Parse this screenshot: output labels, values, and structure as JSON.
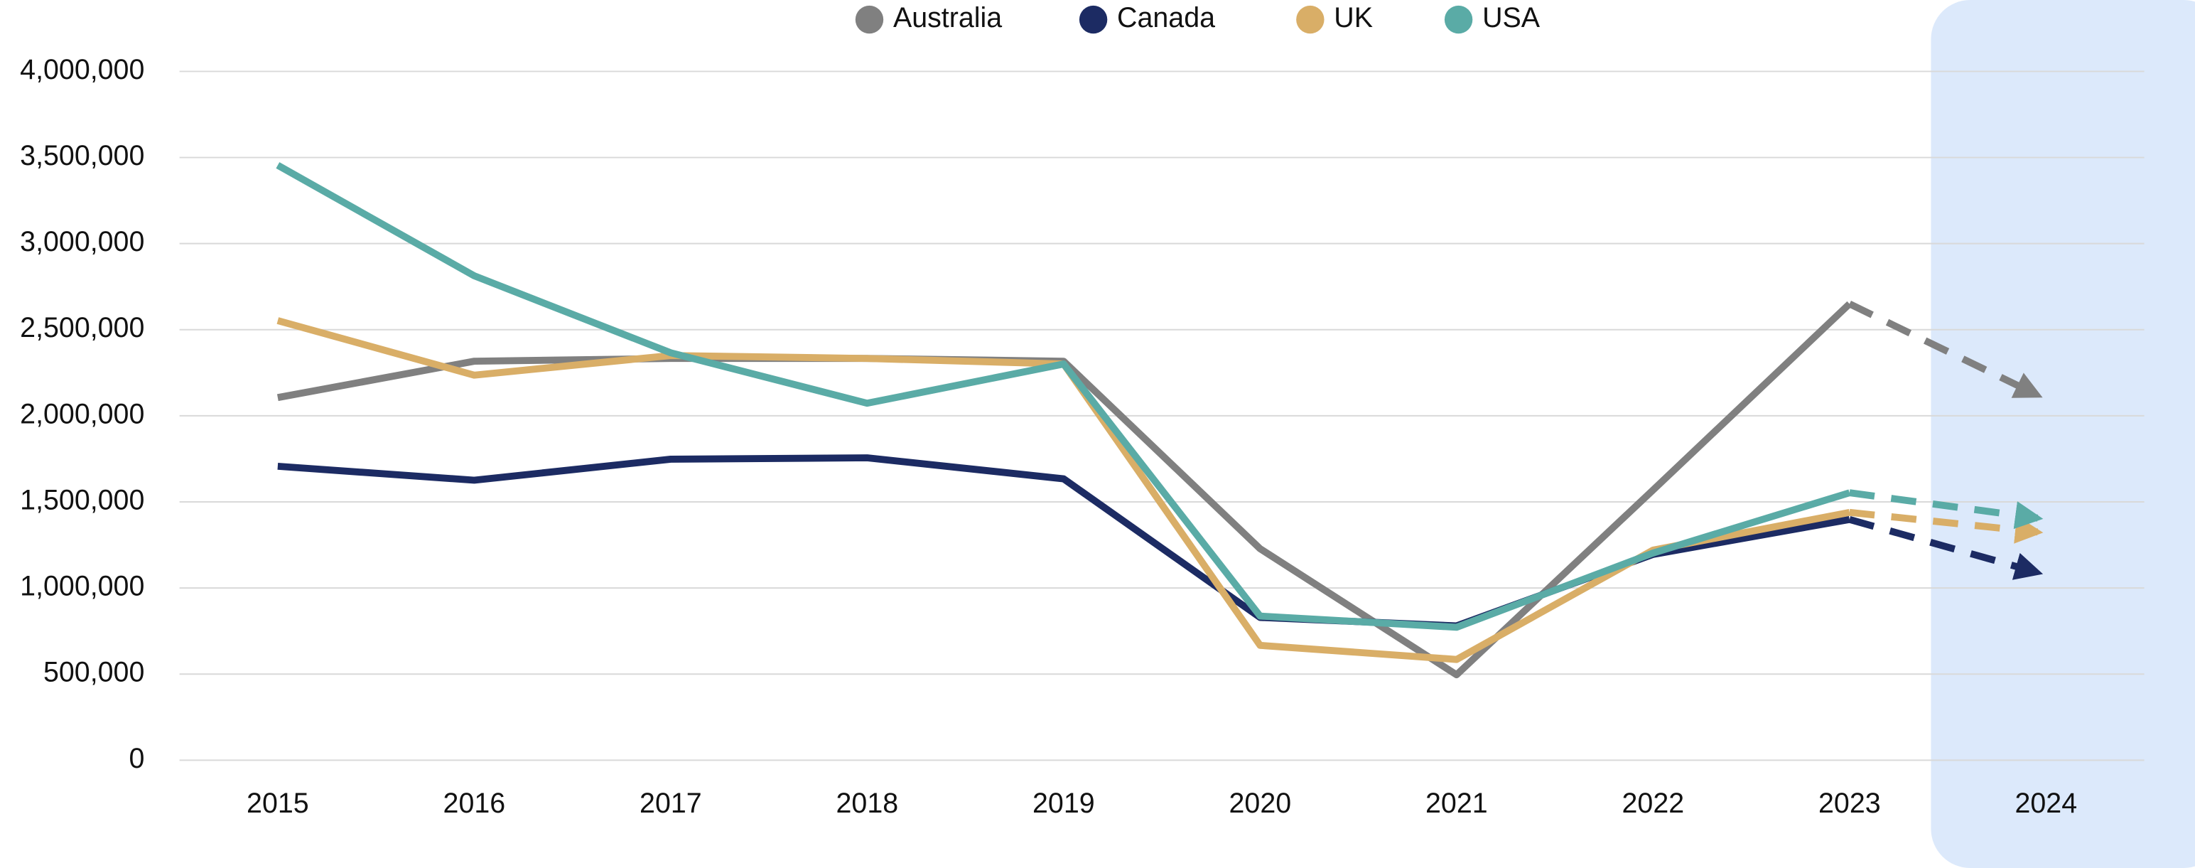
{
  "chart_data": {
    "type": "line",
    "categories": [
      "2015",
      "2016",
      "2017",
      "2018",
      "2019",
      "2020",
      "2021",
      "2022",
      "2023",
      "2024"
    ],
    "series": [
      {
        "name": "Australia",
        "color": "#808080",
        "values": [
          2106000,
          2317000,
          2333000,
          2333000,
          2317000,
          1228000,
          496000,
          1569000,
          2650000,
          2120000
        ]
      },
      {
        "name": "Canada",
        "color": "#1c2b63",
        "values": [
          1707000,
          1626000,
          1748000,
          1756000,
          1634000,
          829000,
          780000,
          1195000,
          1398000,
          1090000
        ]
      },
      {
        "name": "UK",
        "color": "#d9ae67",
        "values": [
          2553000,
          2236000,
          2350000,
          2333000,
          2301000,
          667000,
          585000,
          1220000,
          1439000,
          1325000
        ]
      },
      {
        "name": "USA",
        "color": "#5aaba6",
        "values": [
          3455000,
          2813000,
          2366000,
          2073000,
          2301000,
          837000,
          772000,
          1203000,
          1553000,
          1406000
        ]
      }
    ],
    "ylim": [
      0,
      4000000
    ],
    "yticks": [
      0,
      {
        "value": 500000,
        "label": "500,000"
      },
      {
        "value": 1000000,
        "label": "1,000,000"
      },
      {
        "value": 1500000,
        "label": "1,500,000"
      },
      {
        "value": 2000000,
        "label": "2,000,000"
      },
      {
        "value": 2500000,
        "label": "2,500,000"
      },
      {
        "value": 3000000,
        "label": "3,000,000"
      },
      {
        "value": 3500000,
        "label": "3,500,000"
      },
      {
        "value": 4000000,
        "label": "4,000,000"
      }
    ],
    "grid": true,
    "legend": "top"
  }
}
